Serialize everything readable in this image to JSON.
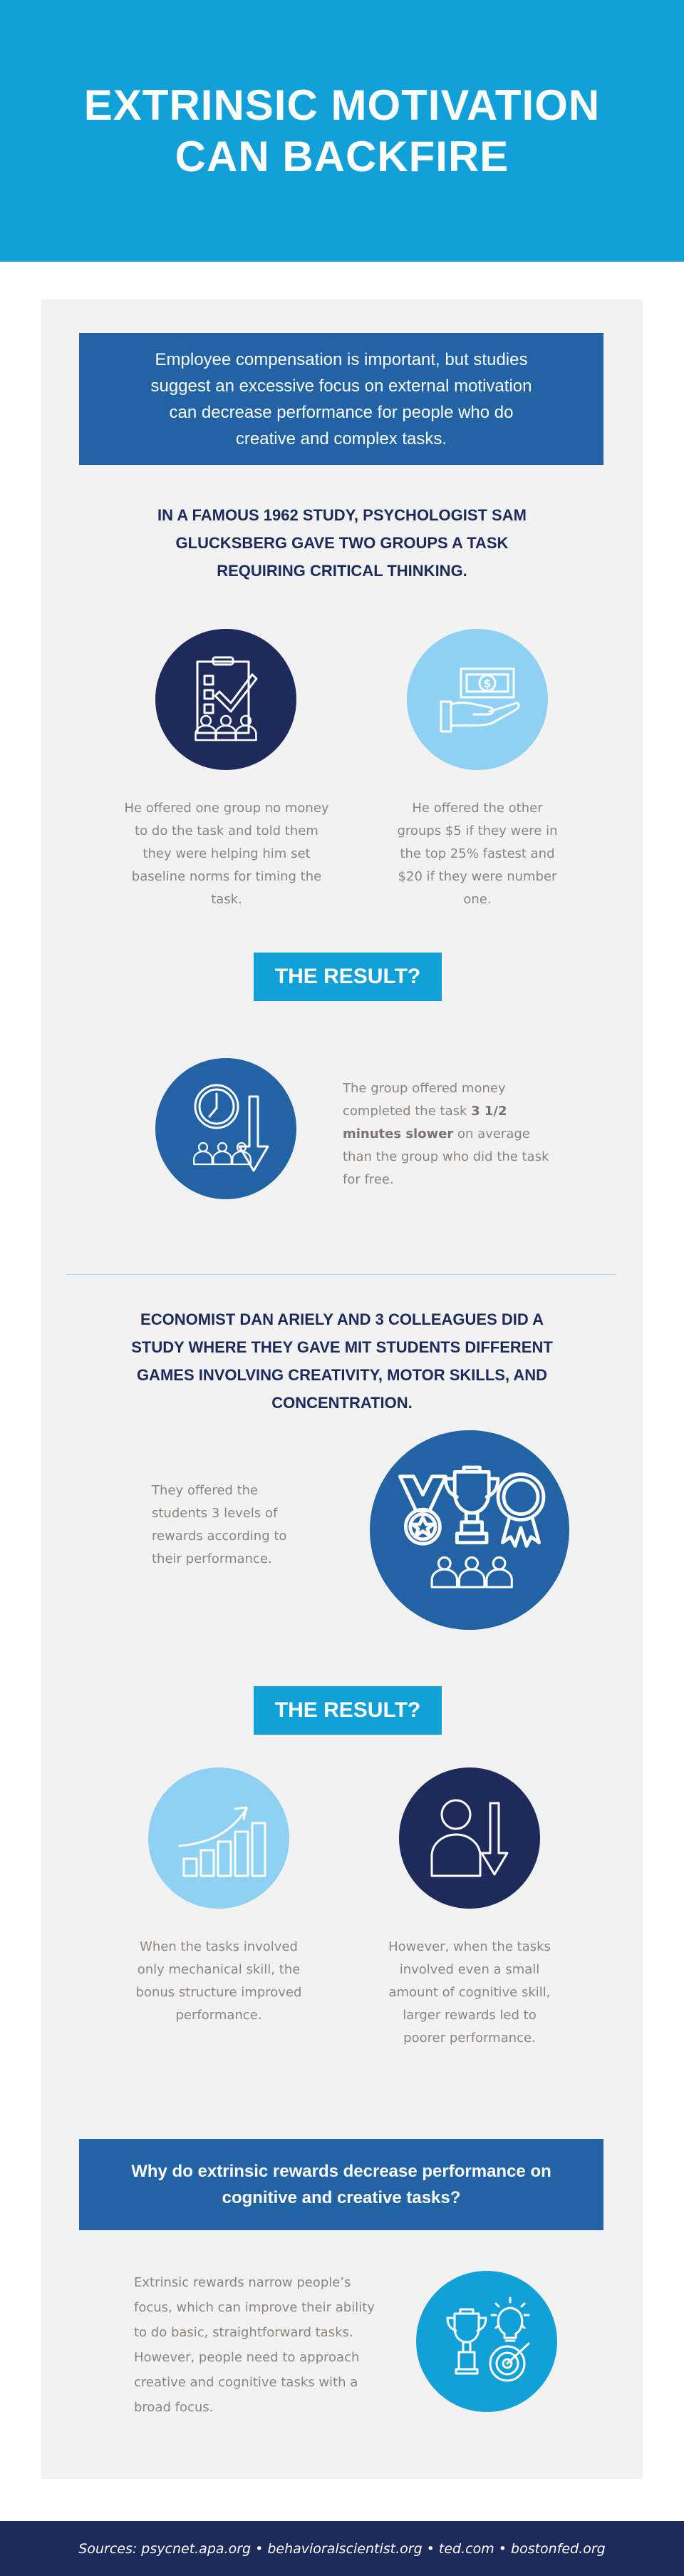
{
  "header": {
    "title_line1": "EXTRINSIC MOTIVATION",
    "title_line2": "CAN BACKFIRE"
  },
  "intro": {
    "text": "Employee compensation is important, but studies suggest an excessive focus on external motivation can decrease performance for people who do creative and complex tasks."
  },
  "study1": {
    "heading": "In a famous 1962 study, psychologist Sam Glucksberg gave two groups a task requiring critical thinking.",
    "left": {
      "icon": "clipboard-checklist-people-icon",
      "text": "He offered one group no money to do the task and told them they were helping him set baseline norms for timing the task."
    },
    "right": {
      "icon": "money-in-hand-icon",
      "text": "He offered the other groups $5 if they were in the top 25% fastest and $20 if they were number one."
    },
    "result_label": "THE RESULT?",
    "result": {
      "icon": "clock-people-down-arrow-icon",
      "text_before": "The group offered money completed the task ",
      "text_bold": "3 1/2 minutes slower",
      "text_after": " on average than the group who did the task for free."
    }
  },
  "study2": {
    "heading": "Economist Dan Ariely and 3 colleagues did a study where they gave MIT students different games involving creativity, motor skills, and concentration.",
    "text": "They offered the students 3 levels of rewards according to their performance.",
    "icon": "medal-trophy-ribbon-people-icon",
    "result_label": "THE RESULT?",
    "left": {
      "icon": "rising-bar-chart-icon",
      "text": "When the tasks involved only mechanical skill, the bonus structure improved performance."
    },
    "right": {
      "icon": "person-down-arrow-icon",
      "text": "However, when the tasks involved even a small amount of cognitive skill, larger rewards led to poorer performance."
    }
  },
  "why": {
    "question": "Why do extrinsic rewards decrease performance on cognitive and creative tasks?",
    "text": "Extrinsic rewards narrow people’s focus, which can improve their ability to do basic, straightforward tasks. However, people need to approach creative and cognitive tasks with a broad focus.",
    "icon": "trophy-lightbulb-target-icon"
  },
  "footer": {
    "sources": "Sources: psycnet.apa.org • behavioralscientist.org • ted.com • bostonfed.org"
  },
  "colors": {
    "header": "#12a0d9",
    "navy": "#1e2b5a",
    "blue": "#2263a6",
    "light_blue": "#8fd1f2",
    "panel": "#f2f2f2",
    "body_text": "#8c8580"
  }
}
